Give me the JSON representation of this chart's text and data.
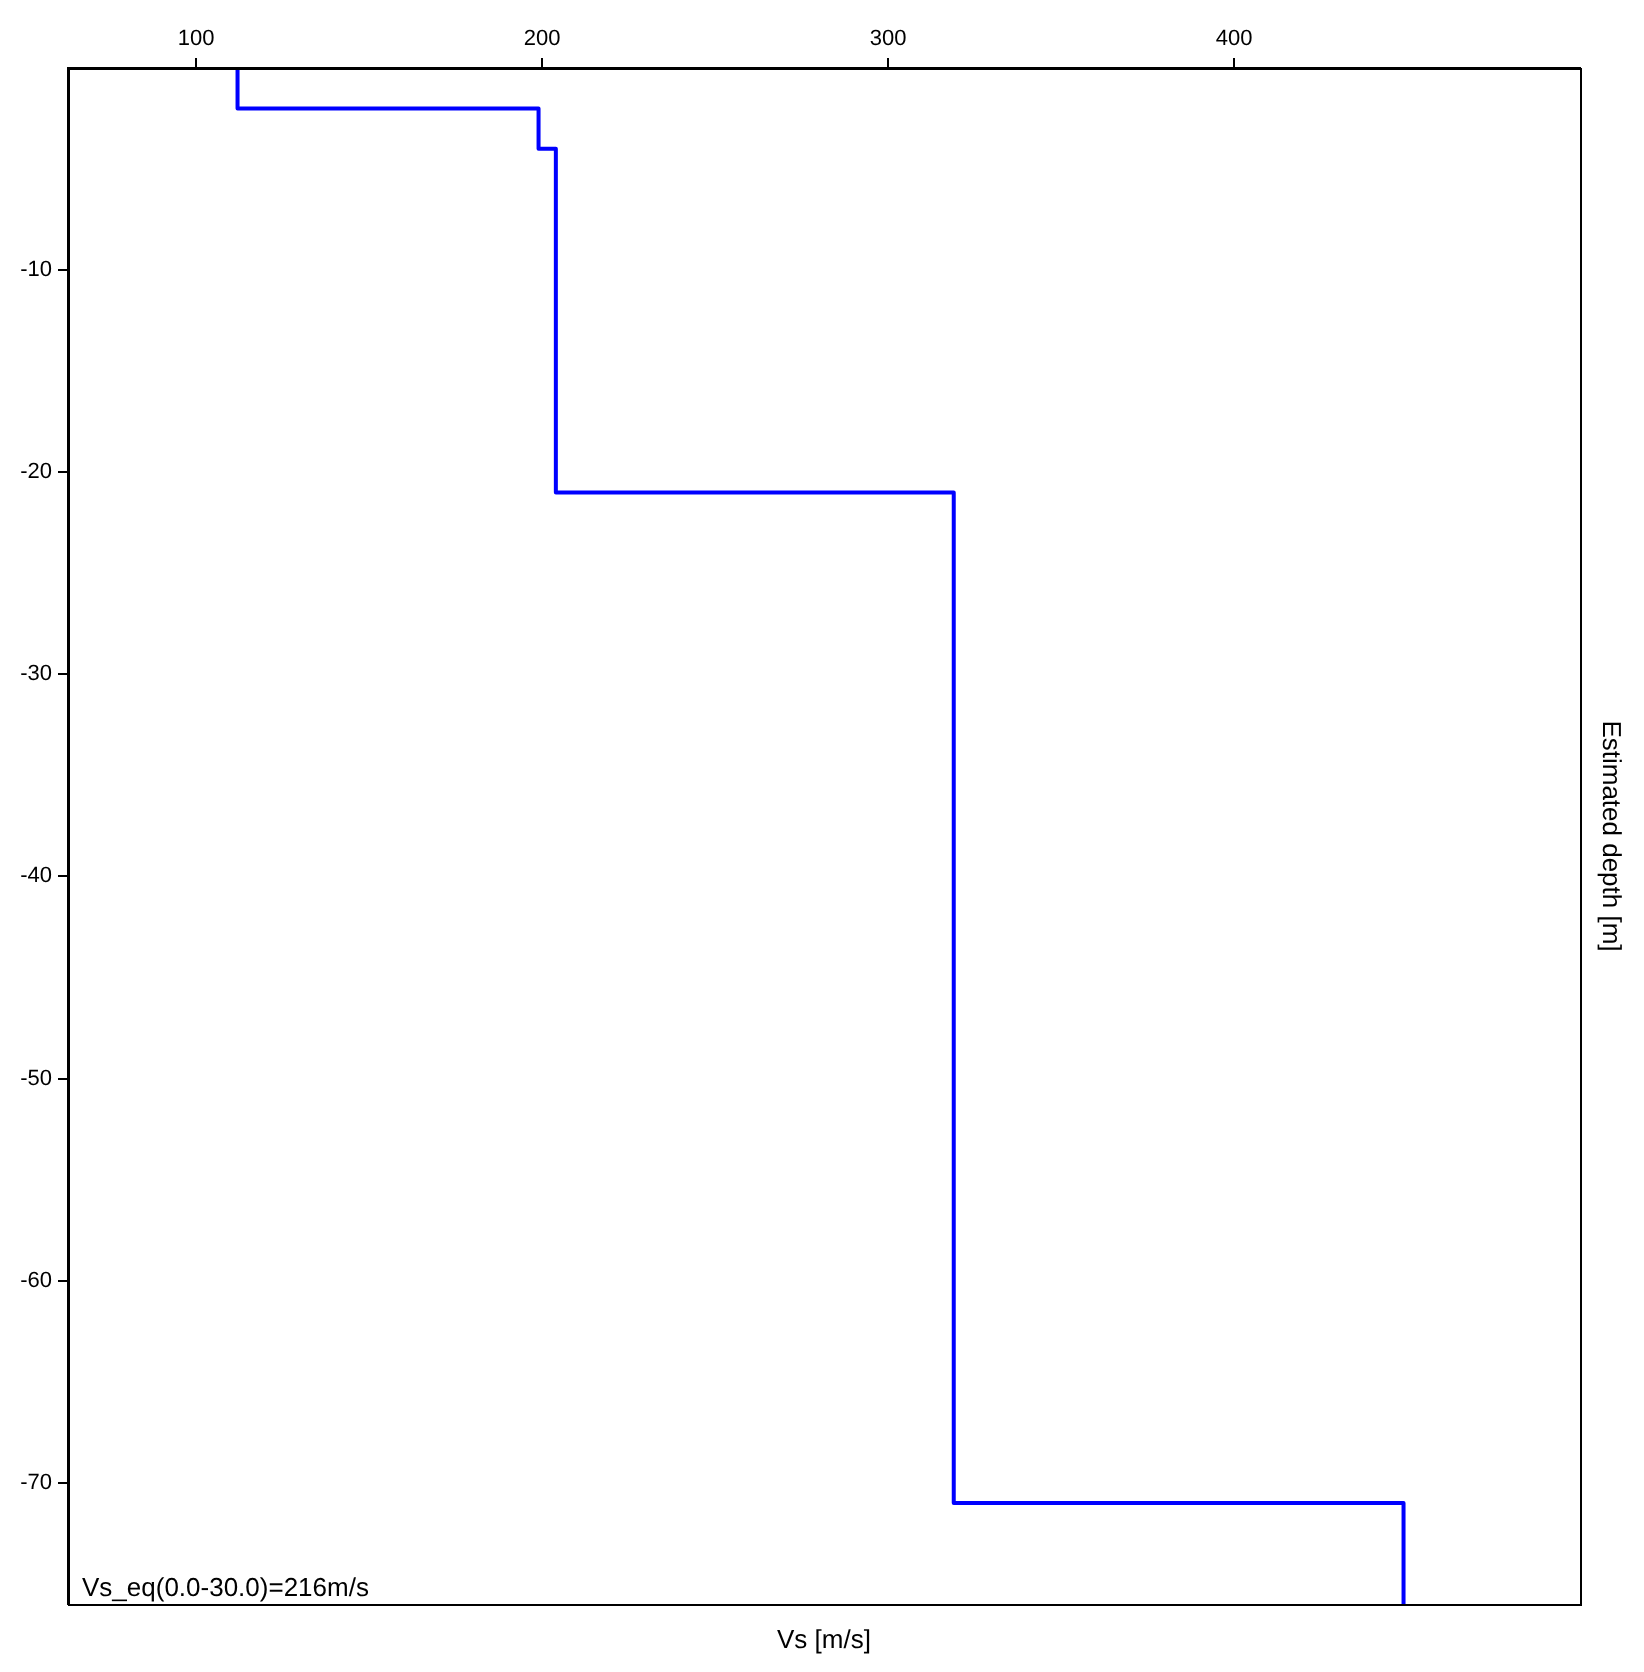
{
  "chart_data": {
    "type": "line",
    "xlabel": "Vs [m/s]",
    "ylabel": "Estimated depth [m]",
    "annotations": [
      "Vs_eq(0.0-30.0)=216m/s"
    ],
    "series": [
      {
        "color": "#0000ff",
        "x": [
          112,
          112,
          199,
          199,
          204,
          204,
          319,
          319,
          449,
          449
        ],
        "values": [
          0,
          -2,
          -2,
          -4,
          -4,
          -21,
          -21,
          -71,
          -71,
          -76
        ]
      }
    ],
    "xlim": [
      63,
      500
    ],
    "xticks": [
      100,
      200,
      300,
      400
    ],
    "ylim": [
      -76,
      0
    ],
    "yticks": [
      -10,
      -20,
      -30,
      -40,
      -50,
      -60,
      -70
    ],
    "grid": false,
    "legend": false,
    "marker": "none",
    "line_style": "solid"
  }
}
